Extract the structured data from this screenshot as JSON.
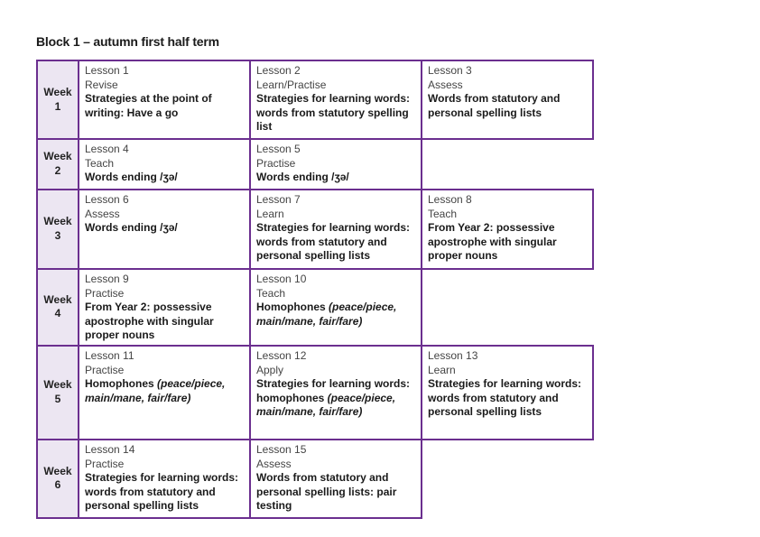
{
  "title": "Block 1 – autumn first half term",
  "weeks": [
    {
      "label": "Week",
      "num": "1",
      "lessons": [
        {
          "lesson": "Lesson 1",
          "type": "Revise",
          "topic": "Strategies at the point of writing: Have a go"
        },
        {
          "lesson": "Lesson 2",
          "type": "Learn/Practise",
          "topic": "Strategies for learning words: words from statutory spelling list"
        },
        {
          "lesson": "Lesson 3",
          "type": "Assess",
          "topic": "Words from statutory and personal spelling lists"
        }
      ]
    },
    {
      "label": "Week",
      "num": "2",
      "lessons": [
        {
          "lesson": "Lesson 4",
          "type": "Teach",
          "topic": "Words ending /ʒə/"
        },
        {
          "lesson": "Lesson 5",
          "type": "Practise",
          "topic": "Words ending /ʒə/"
        }
      ]
    },
    {
      "label": "Week",
      "num": "3",
      "lessons": [
        {
          "lesson": "Lesson 6",
          "type": "Assess",
          "topic": "Words ending /ʒə/"
        },
        {
          "lesson": "Lesson 7",
          "type": "Learn",
          "topic": "Strategies for learning words: words from statutory and personal spelling lists"
        },
        {
          "lesson": "Lesson 8",
          "type": "Teach",
          "topic": "From Year 2: possessive apostrophe with singular proper nouns"
        }
      ]
    },
    {
      "label": "Week",
      "num": "4",
      "lessons": [
        {
          "lesson": "Lesson 9",
          "type": "Practise",
          "topic": "From Year 2: possessive apostrophe with singular proper nouns"
        },
        {
          "lesson": "Lesson 10",
          "type": "Teach",
          "topic": "Homophones",
          "topic_italic": "(peace/piece, main/mane, fair/fare)"
        }
      ]
    },
    {
      "label": "Week",
      "num": "5",
      "lessons": [
        {
          "lesson": "Lesson 11",
          "type": "Practise",
          "topic": "Homophones",
          "topic_italic": "(peace/piece, main/mane, fair/fare)"
        },
        {
          "lesson": "Lesson 12",
          "type": "Apply",
          "topic": "Strategies for learning words: homophones",
          "topic_italic": "(peace/piece, main/mane, fair/fare)"
        },
        {
          "lesson": "Lesson 13",
          "type": "Learn",
          "topic": "Strategies for learning words: words from statutory and personal spelling lists"
        }
      ]
    },
    {
      "label": "Week",
      "num": "6",
      "lessons": [
        {
          "lesson": "Lesson 14",
          "type": "Practise",
          "topic": "Strategies for learning words: words from statutory and personal spelling lists"
        },
        {
          "lesson": "Lesson 15",
          "type": "Assess",
          "topic": "Words from statutory and personal spelling lists: pair testing"
        }
      ]
    }
  ]
}
